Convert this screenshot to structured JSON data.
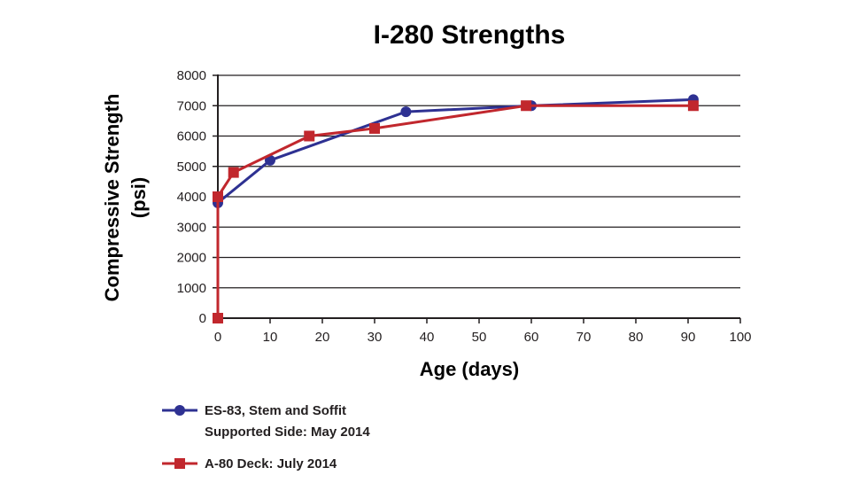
{
  "chart_data": {
    "type": "line",
    "title": "I-280 Strengths",
    "xlabel": "Age (days)",
    "ylabel_line1": "Compressive Strength",
    "ylabel_line2": "(psi)",
    "xlim": [
      0,
      100
    ],
    "ylim": [
      0,
      8000
    ],
    "xticks": [
      0,
      10,
      20,
      30,
      40,
      50,
      60,
      70,
      80,
      90,
      100
    ],
    "yticks": [
      0,
      1000,
      2000,
      3000,
      4000,
      5000,
      6000,
      7000,
      8000
    ],
    "grid": "horizontal",
    "legend_position": "bottom",
    "series": [
      {
        "name_line1": "ES-83, Stem and Soffit",
        "name_line2": "Supported Side: May 2014",
        "color": "#2e3192",
        "marker": "circle",
        "x": [
          0,
          0,
          10,
          36,
          60,
          91
        ],
        "y": [
          0,
          3800,
          5200,
          6800,
          7000,
          7200
        ]
      },
      {
        "name_line1": "A-80 Deck: July 2014",
        "name_line2": "",
        "color": "#c1272d",
        "marker": "square",
        "x": [
          0,
          0,
          3,
          17.5,
          30,
          59,
          91
        ],
        "y": [
          0,
          4000,
          4800,
          6000,
          6250,
          7000,
          7000
        ]
      }
    ]
  }
}
